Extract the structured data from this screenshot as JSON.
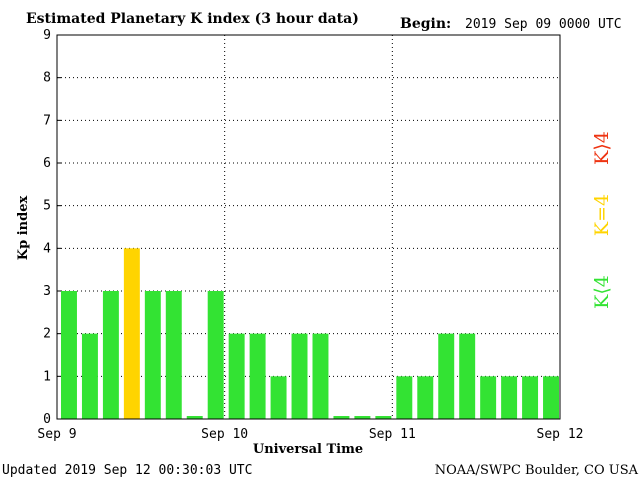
{
  "chart_data": {
    "type": "bar",
    "title": "Estimated Planetary K index (3 hour data)",
    "begin_label": "Begin:",
    "begin_value": "2019 Sep 09 0000 UTC",
    "xlabel": "Universal Time",
    "ylabel": "Kp index",
    "ylim": [
      0,
      9
    ],
    "yticks": [
      "0",
      "1",
      "2",
      "3",
      "4",
      "5",
      "6",
      "7",
      "8",
      "9"
    ],
    "grid": true,
    "x_tick_labels": [
      "Sep 9",
      "Sep 10",
      "Sep 11",
      "Sep 12"
    ],
    "values": [
      3,
      2,
      3,
      4,
      3,
      3,
      0.07,
      3,
      2,
      2,
      1,
      2,
      2,
      0.07,
      0.07,
      0.07,
      1,
      1,
      2,
      2,
      1,
      1,
      1,
      1
    ],
    "legend": [
      {
        "label": "K⟨4",
        "color": "#33e333"
      },
      {
        "label": "K=4",
        "color": "#ffd400"
      },
      {
        "label": "K⟩4",
        "color": "#ee3311"
      }
    ],
    "legend_placement": "right"
  },
  "footer": {
    "updated": "Updated 2019 Sep 12 00:30:03 UTC",
    "source": "NOAA/SWPC Boulder, CO USA"
  },
  "colors": {
    "low": "#33e333",
    "equal": "#ffd400",
    "high": "#ee3311"
  }
}
